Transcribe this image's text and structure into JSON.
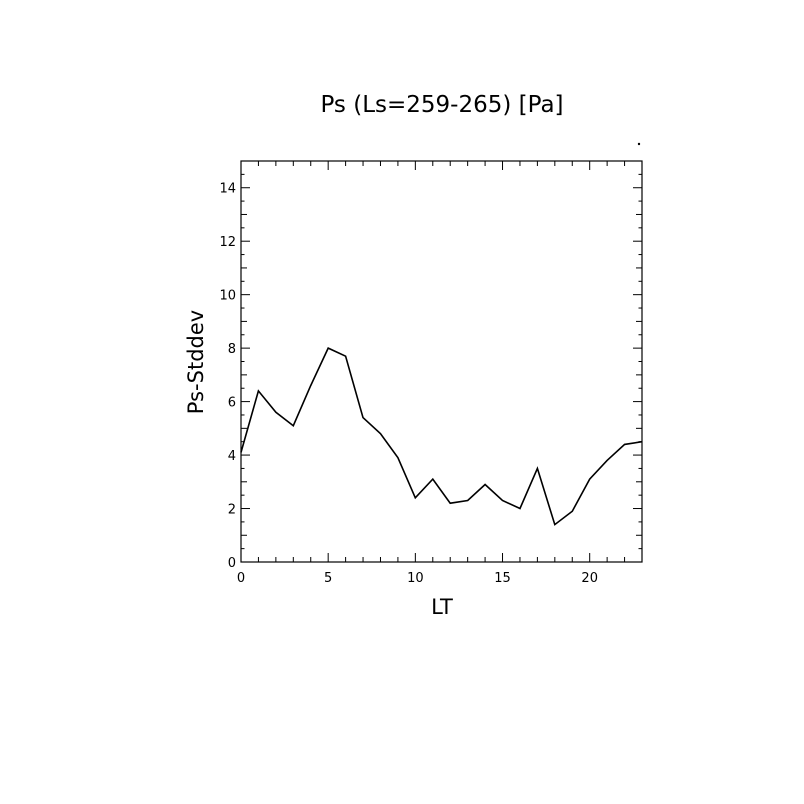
{
  "chart_data": {
    "type": "line",
    "title": "Ps (Ls=259-265) [Pa]",
    "xlabel": "LT",
    "ylabel": "Ps-Stddev",
    "xlim": [
      0,
      23
    ],
    "ylim": [
      0,
      15
    ],
    "xticks": [
      0,
      5,
      10,
      15,
      20
    ],
    "yticks": [
      0,
      2,
      4,
      6,
      8,
      10,
      12,
      14
    ],
    "grid": false,
    "legend": "none",
    "line_color": "#000000",
    "series": [
      {
        "x": [
          0,
          1,
          2,
          3,
          4,
          5,
          6,
          7,
          8,
          9,
          10,
          11,
          12,
          13,
          14,
          15,
          16,
          17,
          18,
          19,
          20,
          21,
          22,
          23
        ],
        "values": [
          4.1,
          6.4,
          5.6,
          5.1,
          6.6,
          8.0,
          7.7,
          5.4,
          4.8,
          3.9,
          2.4,
          3.1,
          2.2,
          2.3,
          2.9,
          2.3,
          2.0,
          3.5,
          1.4,
          1.9,
          3.1,
          3.8,
          4.4,
          4.5
        ]
      }
    ]
  }
}
